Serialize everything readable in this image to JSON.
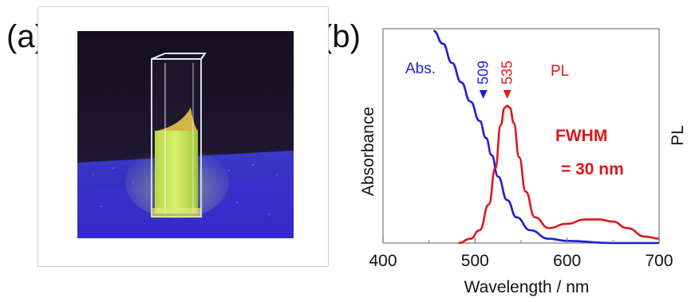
{
  "panels": {
    "a_label": "(a)",
    "b_label": "(b)"
  },
  "colors": {
    "abs": "#1f1fd6",
    "pl": "#e0161b",
    "axis": "#777777",
    "text": "#111111"
  },
  "photo": {
    "subject": "cuvette-with-glowing-yellow-green-solution"
  },
  "chart_data": {
    "type": "line",
    "xlabel": "Wavelength  /  nm",
    "ylabel_left": "Absorbance",
    "ylabel_right": "PL",
    "xlim": [
      400,
      700
    ],
    "ylim": [
      0,
      1
    ],
    "x_ticks": [
      400,
      500,
      600,
      700
    ],
    "x_tick_labels": [
      "400",
      "500",
      "600",
      "700"
    ],
    "grid": false,
    "series": [
      {
        "name": "Abs.",
        "color": "#1f1fd6",
        "x": [
          455,
          465,
          475,
          485,
          495,
          505,
          512,
          518,
          525,
          535,
          545,
          560,
          580,
          600,
          650,
          700
        ],
        "y": [
          0.99,
          0.93,
          0.84,
          0.75,
          0.66,
          0.57,
          0.49,
          0.41,
          0.31,
          0.2,
          0.12,
          0.06,
          0.02,
          0.01,
          0.0,
          0.0
        ]
      },
      {
        "name": "PL",
        "color": "#e0161b",
        "x": [
          482,
          495,
          505,
          515,
          522,
          528,
          532,
          535,
          538,
          542,
          548,
          555,
          565,
          580,
          600,
          620,
          635,
          650,
          665,
          685,
          700
        ],
        "y": [
          0.0,
          0.02,
          0.06,
          0.18,
          0.35,
          0.55,
          0.63,
          0.64,
          0.63,
          0.56,
          0.4,
          0.24,
          0.12,
          0.07,
          0.09,
          0.11,
          0.11,
          0.1,
          0.07,
          0.03,
          0.02
        ]
      }
    ],
    "annotations": [
      {
        "text": "509",
        "x": 509,
        "color": "#1f1fd6",
        "marker": "down-triangle"
      },
      {
        "text": "535",
        "x": 535,
        "color": "#e0161b",
        "marker": "down-triangle"
      },
      {
        "text": "Abs.",
        "color": "#1f1fd6"
      },
      {
        "text": "PL",
        "color": "#e0161b"
      },
      {
        "text": "FWHM",
        "color": "#e0161b"
      },
      {
        "text": "= 30 nm",
        "color": "#e0161b"
      }
    ]
  }
}
